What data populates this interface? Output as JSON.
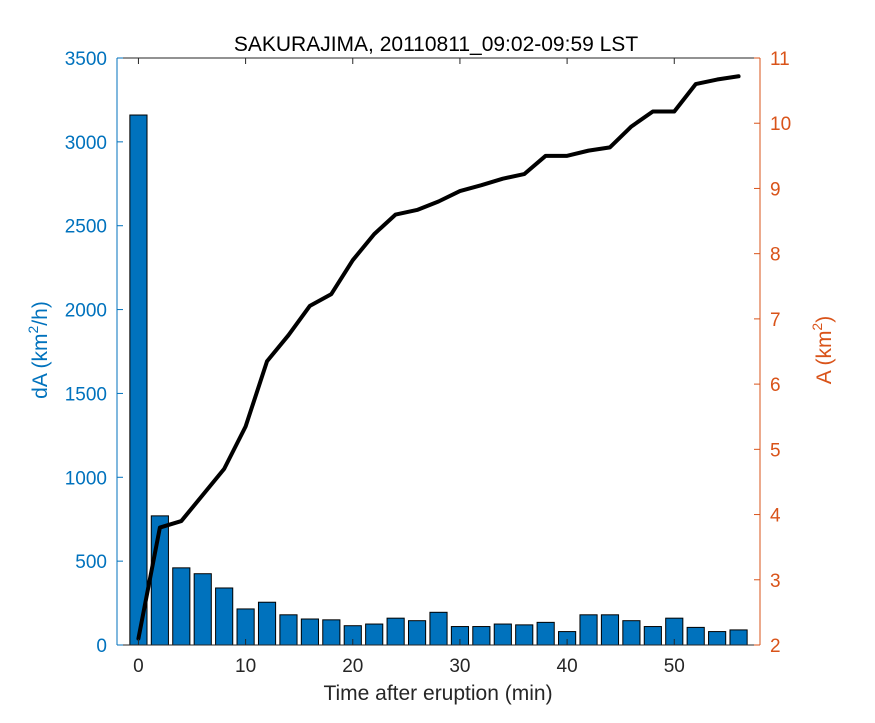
{
  "chart_data": {
    "type": "bar+line",
    "title": "SAKURAJIMA, 20110811_09:02-09:59 LST",
    "xlabel": "Time after eruption (min)",
    "ylabel_left": {
      "text": "dA (km",
      "sup": "2",
      "tail": "/h)"
    },
    "ylabel_right": {
      "text": "A (km",
      "sup": "2",
      "tail": ")"
    },
    "xlim": [
      -2,
      58
    ],
    "xticks": [
      0,
      10,
      20,
      30,
      40,
      50
    ],
    "ylim_left": [
      0,
      3500
    ],
    "yticks_left": [
      0,
      500,
      1000,
      1500,
      2000,
      2500,
      3000,
      3500
    ],
    "ylim_right": [
      2,
      11
    ],
    "yticks_right": [
      2,
      3,
      4,
      5,
      6,
      7,
      8,
      9,
      10,
      11
    ],
    "bar_series": {
      "axis": "left",
      "color": "#0072BD",
      "x": [
        0,
        2,
        4,
        6,
        8,
        10,
        12,
        14,
        16,
        18,
        20,
        22,
        24,
        26,
        28,
        30,
        32,
        34,
        36,
        38,
        40,
        42,
        44,
        46,
        48,
        50,
        52,
        54,
        56
      ],
      "values": [
        3160,
        770,
        460,
        425,
        340,
        215,
        255,
        180,
        155,
        150,
        115,
        125,
        160,
        145,
        195,
        110,
        110,
        125,
        120,
        135,
        80,
        180,
        180,
        145,
        110,
        160,
        105,
        80,
        90
      ]
    },
    "line_series": {
      "axis": "right",
      "color": "#000000",
      "x": [
        0,
        2,
        4,
        6,
        8,
        10,
        12,
        14,
        16,
        18,
        20,
        22,
        24,
        26,
        28,
        30,
        32,
        34,
        36,
        38,
        40,
        42,
        44,
        46,
        48,
        50,
        52,
        54,
        56
      ],
      "values": [
        2.1,
        3.8,
        3.9,
        4.3,
        4.7,
        5.35,
        6.35,
        6.75,
        7.2,
        7.38,
        7.9,
        8.3,
        8.6,
        8.67,
        8.8,
        8.96,
        9.05,
        9.15,
        9.22,
        9.5,
        9.5,
        9.58,
        9.63,
        9.95,
        10.18,
        10.18,
        10.6,
        10.67,
        10.72
      ]
    },
    "colors": {
      "left_axis": "#0072BD",
      "right_axis": "#D95319",
      "box": "#262626"
    },
    "grid": false,
    "legend": "none"
  }
}
